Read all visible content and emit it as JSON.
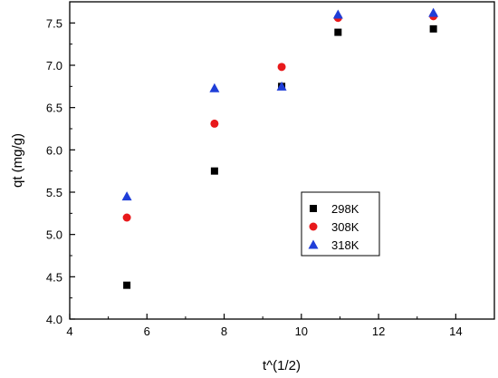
{
  "chart_data": {
    "type": "scatter",
    "xlabel": "t^(1/2)",
    "ylabel": "qt (mg/g)",
    "xlim": [
      4,
      15
    ],
    "ylim": [
      4.0,
      7.75
    ],
    "xticks": [
      4,
      6,
      8,
      10,
      12,
      14
    ],
    "yticks": [
      4.0,
      4.5,
      5.0,
      5.5,
      6.0,
      6.5,
      7.0,
      7.5
    ],
    "grid": false,
    "legend_position": "right-center",
    "series": [
      {
        "name": "298K",
        "marker": "square",
        "color": "#000000",
        "points": [
          [
            5.48,
            4.4
          ],
          [
            7.75,
            5.75
          ],
          [
            9.49,
            6.75
          ],
          [
            10.95,
            7.39
          ],
          [
            13.42,
            7.43
          ]
        ]
      },
      {
        "name": "308K",
        "marker": "circle",
        "color": "#e8191b",
        "points": [
          [
            5.48,
            5.2
          ],
          [
            7.75,
            6.31
          ],
          [
            9.49,
            6.98
          ],
          [
            10.95,
            7.56
          ],
          [
            13.42,
            7.58
          ]
        ]
      },
      {
        "name": "318K",
        "marker": "triangle",
        "color": "#1f3ed8",
        "points": [
          [
            5.48,
            5.45
          ],
          [
            7.75,
            6.73
          ],
          [
            9.49,
            6.75
          ],
          [
            10.95,
            7.6
          ],
          [
            13.42,
            7.62
          ]
        ]
      }
    ]
  }
}
